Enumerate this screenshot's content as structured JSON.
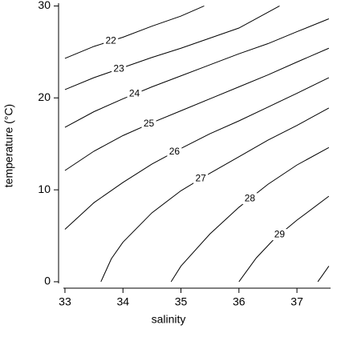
{
  "chart_data": {
    "type": "contour",
    "xlabel": "salinity",
    "ylabel": "temperature (°C)",
    "xlim": [
      32.89,
      37.58
    ],
    "ylim": [
      -0.7,
      30.3
    ],
    "xticks": [
      33,
      34,
      35,
      36,
      37
    ],
    "yticks": [
      0,
      10,
      20,
      30
    ],
    "color": "#000000",
    "series": [
      {
        "level": 22,
        "x": [
          33,
          33.5,
          34,
          34.5,
          35,
          35.4
        ],
        "y": [
          24.3,
          25.6,
          26.6,
          27.8,
          28.9,
          30
        ]
      },
      {
        "level": 23,
        "x": [
          33,
          33.5,
          34,
          34.5,
          35,
          35.5,
          36,
          36.7
        ],
        "y": [
          20.9,
          22.2,
          23.3,
          24.4,
          25.4,
          26.5,
          27.6,
          30
        ]
      },
      {
        "level": 24,
        "x": [
          33,
          33.5,
          34,
          34.5,
          35,
          35.5,
          36,
          36.5,
          37,
          37.55
        ],
        "y": [
          16.8,
          18.5,
          19.9,
          21.2,
          22.4,
          23.6,
          24.8,
          25.9,
          27.2,
          28.6
        ]
      },
      {
        "level": 25,
        "x": [
          33,
          33.5,
          34,
          34.5,
          35,
          35.5,
          36,
          36.5,
          37,
          37.55
        ],
        "y": [
          12.1,
          14.2,
          15.9,
          17.3,
          18.6,
          19.9,
          21.2,
          22.5,
          23.9,
          25.4
        ]
      },
      {
        "level": 26,
        "x": [
          33,
          33.5,
          34,
          34.5,
          35,
          35.5,
          36,
          36.5,
          37,
          37.55
        ],
        "y": [
          5.7,
          8.6,
          10.8,
          12.8,
          14.5,
          16.1,
          17.5,
          19.0,
          20.5,
          22.2
        ]
      },
      {
        "level": 27,
        "x": [
          33.62,
          33.8,
          34,
          34.5,
          35,
          35.5,
          36,
          36.5,
          37,
          37.55
        ],
        "y": [
          0,
          2.5,
          4.3,
          7.5,
          9.9,
          11.8,
          13.6,
          15.4,
          17.0,
          18.9
        ]
      },
      {
        "level": 28,
        "x": [
          34.83,
          35,
          35.5,
          36,
          36.5,
          37,
          37.55
        ],
        "y": [
          0,
          1.7,
          5.2,
          8.1,
          10.6,
          12.7,
          14.6
        ]
      },
      {
        "level": 29,
        "x": [
          36.0,
          36.3,
          36.6,
          37,
          37.55
        ],
        "y": [
          0,
          2.6,
          4.6,
          6.7,
          9.3
        ]
      },
      {
        "level": null,
        "x": [
          37.36,
          37.45,
          37.55
        ],
        "y": [
          0,
          0.8,
          1.7
        ]
      }
    ]
  }
}
